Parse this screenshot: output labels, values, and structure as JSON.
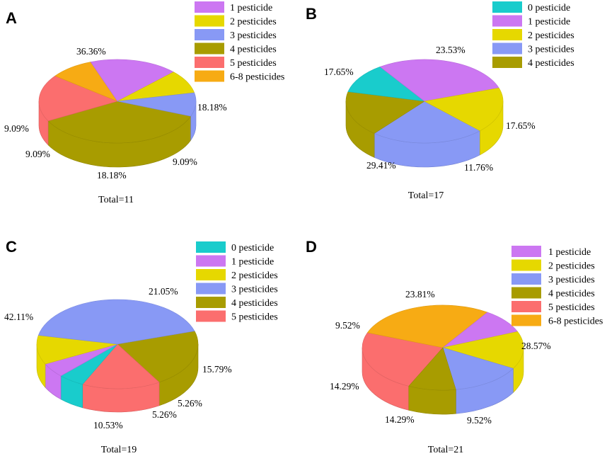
{
  "colors": {
    "0": "#19cccc",
    "1": "#cc77f2",
    "2": "#e6d800",
    "3": "#8899f5",
    "4": "#a89c00",
    "5": "#fb6e6e",
    "6": "#f7ab14"
  },
  "chart_data": [
    {
      "type": "pie",
      "panel": "A",
      "total_label": "Total=11",
      "legend": [
        {
          "key": "1",
          "label": "1 pesticide"
        },
        {
          "key": "2",
          "label": "2 pesticides"
        },
        {
          "key": "3",
          "label": "3 pesticides"
        },
        {
          "key": "4",
          "label": "4 pesticides"
        },
        {
          "key": "5",
          "label": "5 pesticides"
        },
        {
          "key": "6",
          "label": "6-8 pesticides"
        }
      ],
      "slices": [
        {
          "key": "4",
          "value": 36.36,
          "label": "36.36%"
        },
        {
          "key": "5",
          "value": 18.18,
          "label": "18.18%"
        },
        {
          "key": "6",
          "value": 9.09,
          "label": "9.09%"
        },
        {
          "key": "1",
          "value": 18.18,
          "label": "18.18%"
        },
        {
          "key": "2",
          "value": 9.09,
          "label": "9.09%"
        },
        {
          "key": "3",
          "value": 9.09,
          "label": "9.09%"
        }
      ]
    },
    {
      "type": "pie",
      "panel": "B",
      "total_label": "Total=17",
      "legend": [
        {
          "key": "0",
          "label": "0 pesticide"
        },
        {
          "key": "1",
          "label": "1 pesticide"
        },
        {
          "key": "2",
          "label": "2 pesticides"
        },
        {
          "key": "3",
          "label": "3 pesticides"
        },
        {
          "key": "4",
          "label": "4 pesticides"
        }
      ],
      "slices": [
        {
          "key": "3",
          "value": 23.53,
          "label": "23.53%"
        },
        {
          "key": "4",
          "value": 17.65,
          "label": "17.65%"
        },
        {
          "key": "0",
          "value": 11.76,
          "label": "11.76%"
        },
        {
          "key": "1",
          "value": 29.41,
          "label": "29.41%"
        },
        {
          "key": "2",
          "value": 17.65,
          "label": "17.65%"
        }
      ]
    },
    {
      "type": "pie",
      "panel": "C",
      "total_label": "Total=19",
      "legend": [
        {
          "key": "0",
          "label": "0 pesticide"
        },
        {
          "key": "1",
          "label": "1  pesticide"
        },
        {
          "key": "2",
          "label": "2  pesticides"
        },
        {
          "key": "3",
          "label": "3  pesticides"
        },
        {
          "key": "4",
          "label": "4  pesticides"
        },
        {
          "key": "5",
          "label": "5  pesticides"
        }
      ],
      "slices": [
        {
          "key": "4",
          "value": 21.05,
          "label": "21.05%"
        },
        {
          "key": "5",
          "value": 15.79,
          "label": "15.79%"
        },
        {
          "key": "0",
          "value": 5.26,
          "label": "5.26%"
        },
        {
          "key": "1",
          "value": 5.26,
          "label": "5.26%"
        },
        {
          "key": "2",
          "value": 10.53,
          "label": "10.53%"
        },
        {
          "key": "3",
          "value": 42.11,
          "label": "42.11%"
        }
      ]
    },
    {
      "type": "pie",
      "panel": "D",
      "total_label": "Total=21",
      "legend": [
        {
          "key": "1",
          "label": "1  pesticide"
        },
        {
          "key": "2",
          "label": "2  pesticides"
        },
        {
          "key": "3",
          "label": "3  pesticides"
        },
        {
          "key": "4",
          "label": "4  pesticides"
        },
        {
          "key": "5",
          "label": "5  pesticides"
        },
        {
          "key": "6",
          "label": "6-8  pesticides"
        }
      ],
      "slices": [
        {
          "key": "5",
          "value": 23.81,
          "label": "23.81%"
        },
        {
          "key": "6",
          "value": 28.57,
          "label": "28.57%"
        },
        {
          "key": "1",
          "value": 9.52,
          "label": "9.52%"
        },
        {
          "key": "2",
          "value": 14.29,
          "label": "14.29%"
        },
        {
          "key": "3",
          "value": 14.29,
          "label": "14.29%"
        },
        {
          "key": "4",
          "value": 9.52,
          "label": "9.52%"
        }
      ]
    }
  ]
}
